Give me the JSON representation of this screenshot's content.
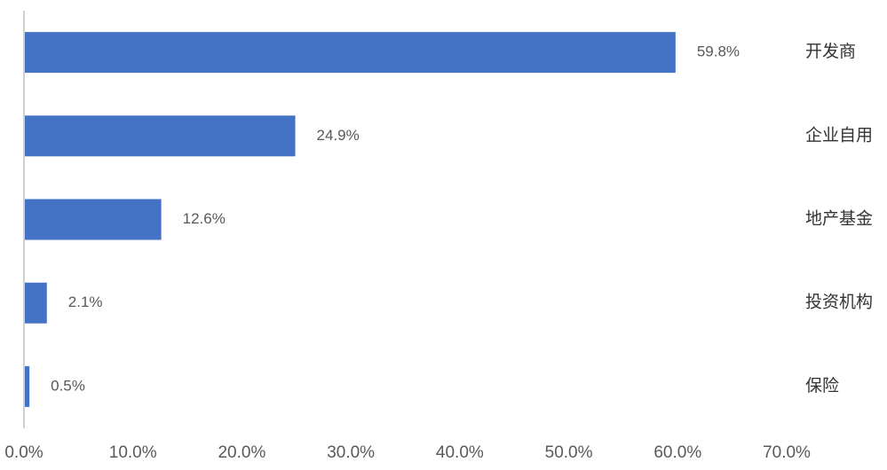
{
  "chart_data": {
    "type": "bar",
    "orientation": "horizontal",
    "categories": [
      "开发商",
      "企业自用",
      "地产基金",
      "投资机构",
      "保险"
    ],
    "values": [
      59.8,
      24.9,
      12.6,
      2.1,
      0.5
    ],
    "value_labels": [
      "59.8%",
      "24.9%",
      "12.6%",
      "2.1%",
      "0.5%"
    ],
    "color": "#4472c4",
    "xlim": [
      0,
      70
    ],
    "xticks": [
      {
        "value": 0,
        "label": "0.0%"
      },
      {
        "value": 10,
        "label": "10.0%"
      },
      {
        "value": 20,
        "label": "20.0%"
      },
      {
        "value": 30,
        "label": "30.0%"
      },
      {
        "value": 40,
        "label": "40.0%"
      },
      {
        "value": 50,
        "label": "50.0%"
      },
      {
        "value": 60,
        "label": "60.0%"
      },
      {
        "value": 70,
        "label": "70.0%"
      }
    ],
    "grid": false
  }
}
